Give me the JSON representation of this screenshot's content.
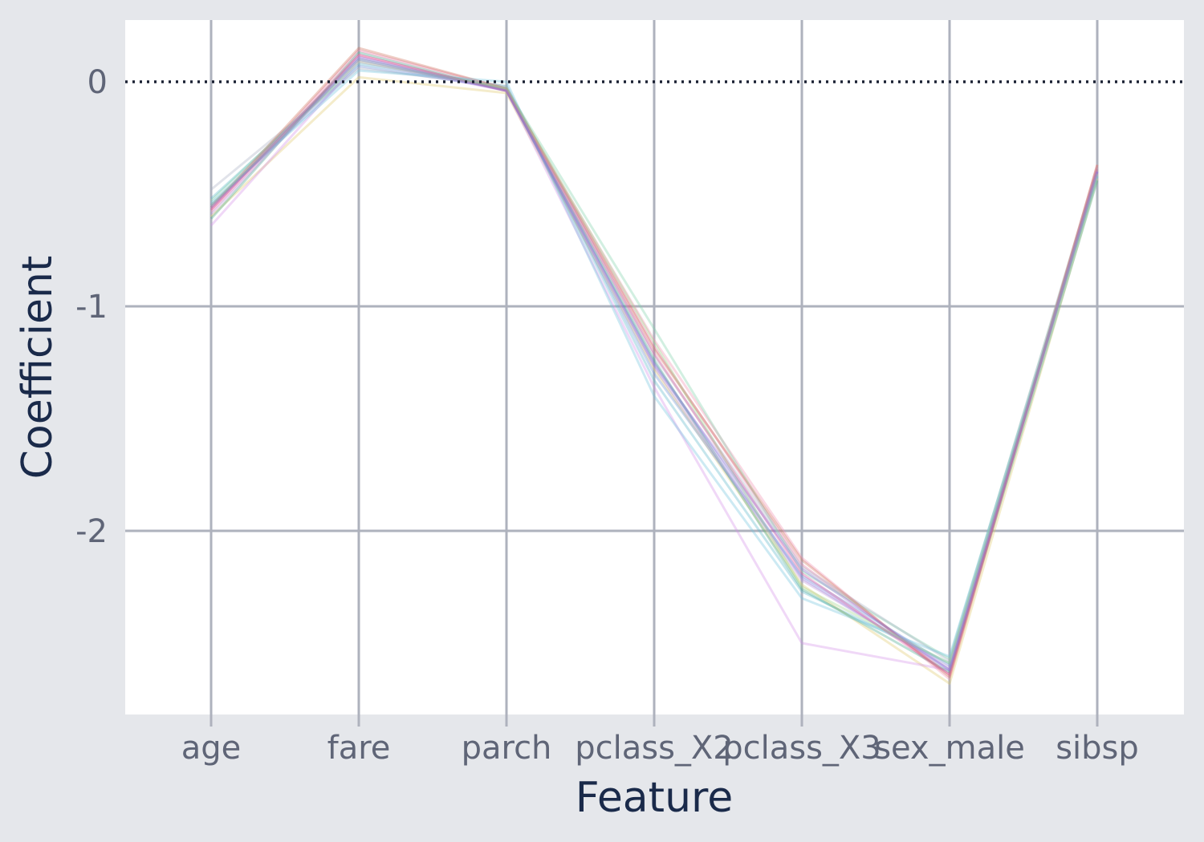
{
  "chart_data": {
    "type": "line",
    "xlabel": "Feature",
    "ylabel": "Coefficient",
    "categories": [
      "age",
      "fare",
      "parch",
      "pclass_X2",
      "pclass_X3",
      "sex_male",
      "sibsp"
    ],
    "ylim": [
      -2.8,
      0.28
    ],
    "yticks": [
      0,
      -1,
      -2
    ],
    "ytick_labels": [
      "0",
      "-1",
      "-2"
    ],
    "reference_line": {
      "y": 0,
      "style": "dotted"
    },
    "grid": true,
    "series": [
      {
        "color": "#8c7fe0",
        "values": [
          -0.55,
          0.11,
          -0.04,
          -1.25,
          -2.21,
          -2.62,
          -0.4
        ]
      },
      {
        "color": "#e6739f",
        "values": [
          -0.57,
          0.14,
          -0.03,
          -1.18,
          -2.15,
          -2.64,
          -0.38
        ]
      },
      {
        "color": "#5ab4c8",
        "values": [
          -0.52,
          0.08,
          -0.02,
          -1.33,
          -2.27,
          -2.59,
          -0.42
        ]
      },
      {
        "color": "#f28eb0",
        "values": [
          -0.58,
          0.12,
          -0.04,
          -1.15,
          -2.12,
          -2.66,
          -0.37
        ]
      },
      {
        "color": "#7fd1a8",
        "values": [
          -0.53,
          0.1,
          -0.03,
          -1.1,
          -2.18,
          -2.57,
          -0.39
        ]
      },
      {
        "color": "#e0c96a",
        "values": [
          -0.6,
          0.02,
          -0.05,
          -1.28,
          -2.24,
          -2.68,
          -0.43
        ]
      },
      {
        "color": "#d58fe8",
        "values": [
          -0.64,
          0.09,
          -0.04,
          -1.36,
          -2.5,
          -2.62,
          -0.41
        ]
      },
      {
        "color": "#6a8fd6",
        "values": [
          -0.55,
          0.07,
          -0.03,
          -1.3,
          -2.2,
          -2.6,
          -0.4
        ]
      },
      {
        "color": "#a9b0c2",
        "values": [
          -0.48,
          0.06,
          -0.02,
          -1.22,
          -2.16,
          -2.58,
          -0.38
        ]
      },
      {
        "color": "#3fa68a",
        "values": [
          -0.61,
          0.13,
          -0.04,
          -1.24,
          -2.26,
          -2.63,
          -0.44
        ]
      },
      {
        "color": "#cf6f5a",
        "values": [
          -0.56,
          0.15,
          -0.03,
          -1.19,
          -2.13,
          -2.65,
          -0.37
        ]
      },
      {
        "color": "#6fc4dc",
        "values": [
          -0.54,
          0.05,
          0.0,
          -1.4,
          -2.3,
          -2.56,
          -0.42
        ]
      },
      {
        "color": "#b88fd8",
        "values": [
          -0.59,
          0.11,
          -0.04,
          -1.27,
          -2.22,
          -2.61,
          -0.4
        ]
      },
      {
        "color": "#e0529a",
        "values": [
          -0.57,
          0.12,
          -0.04,
          -1.21,
          -2.19,
          -2.64,
          -0.39
        ]
      },
      {
        "color": "#9fd48a",
        "values": [
          -0.55,
          0.09,
          -0.03,
          -1.16,
          -2.25,
          -2.59,
          -0.41
        ]
      },
      {
        "color": "#8a6fd0",
        "values": [
          -0.56,
          0.1,
          -0.04,
          -1.26,
          -2.17,
          -2.62,
          -0.4
        ]
      }
    ]
  }
}
